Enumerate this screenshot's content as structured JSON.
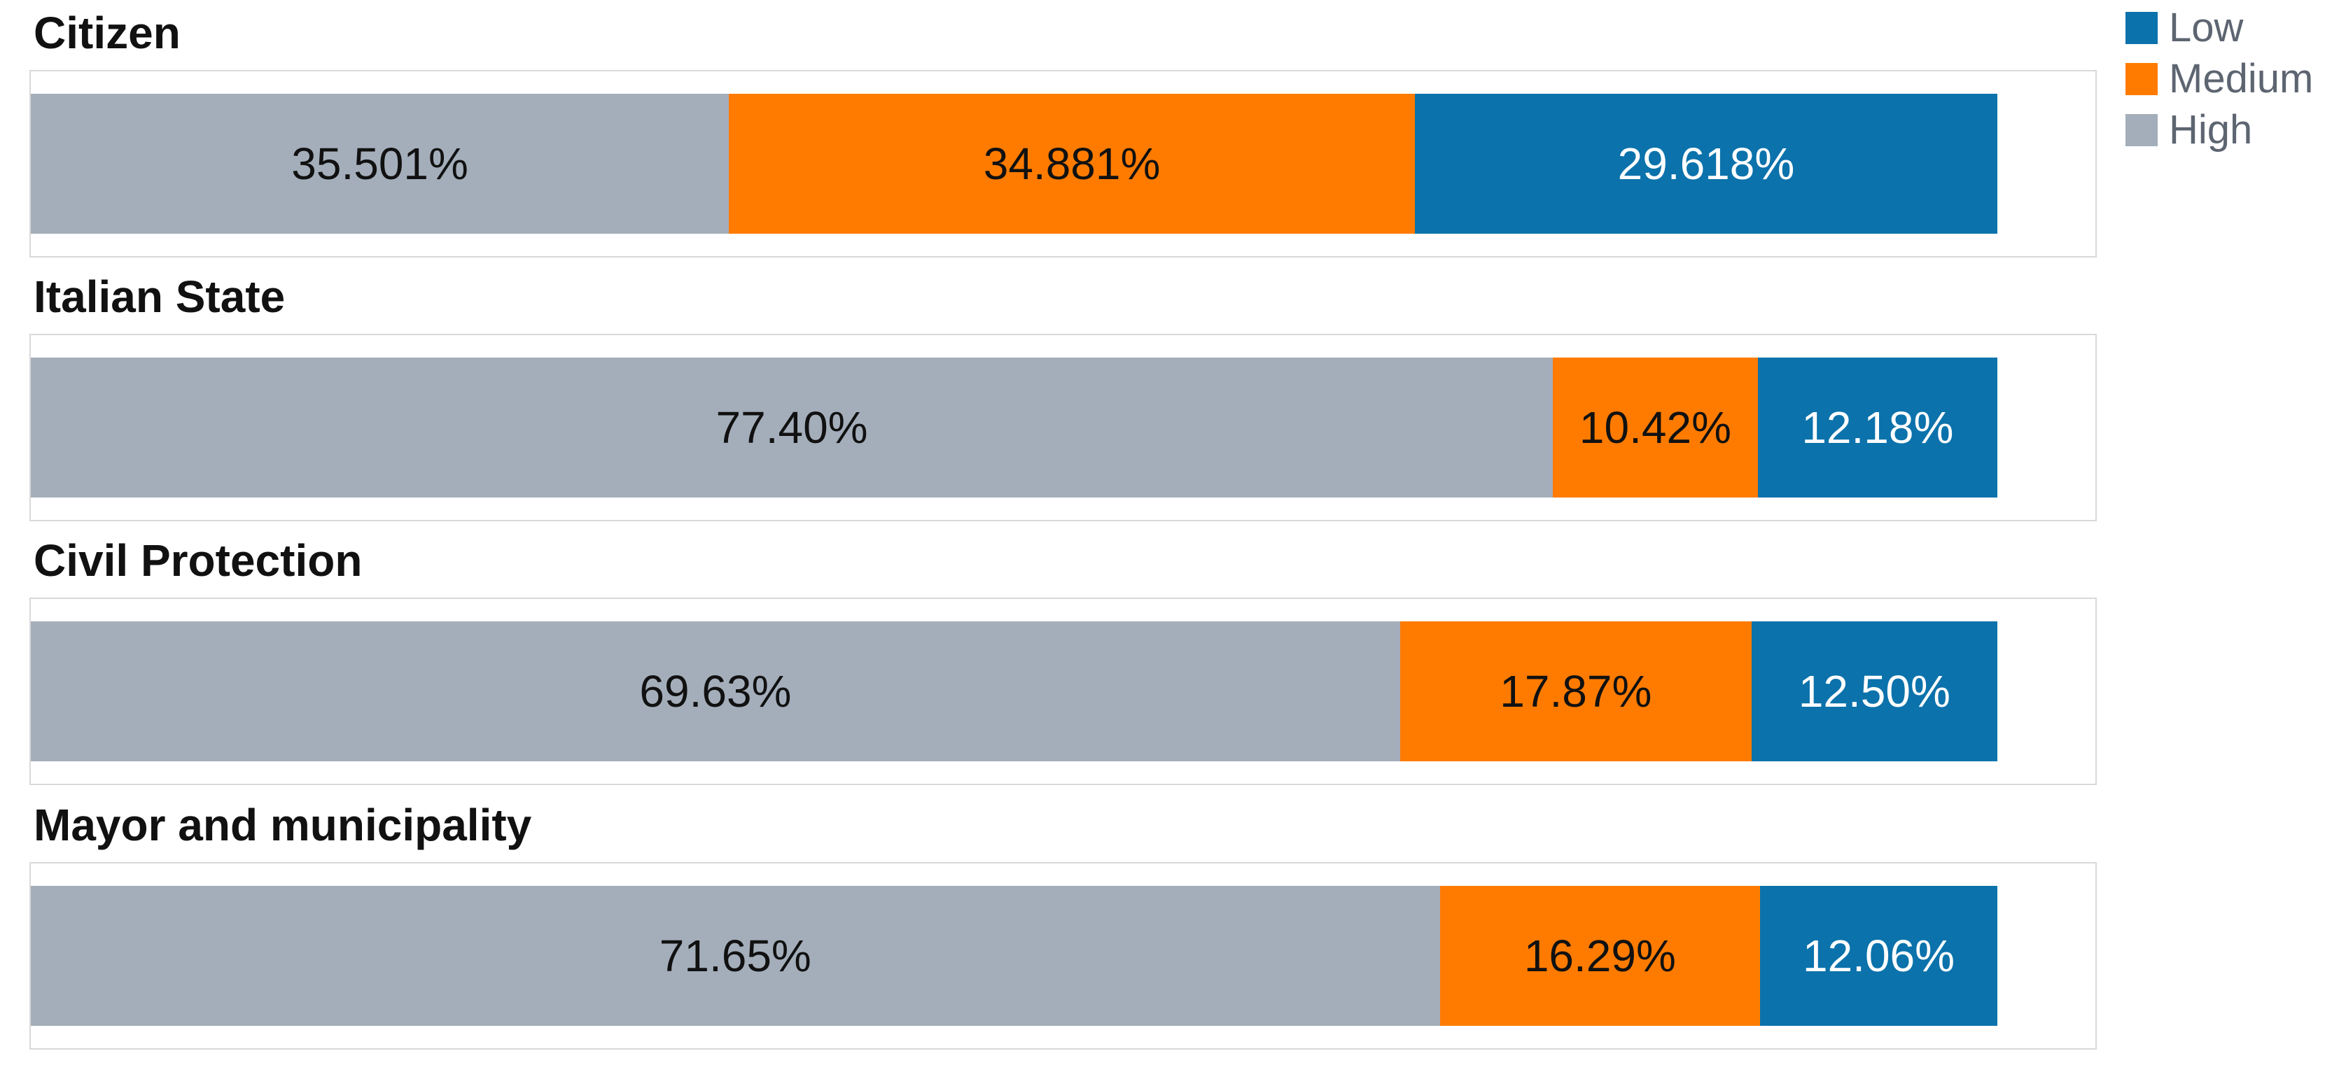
{
  "chart_data": {
    "type": "bar",
    "variant": "horizontal-stacked-percentage",
    "title": "",
    "xlabel": "",
    "ylabel": "",
    "xlim": [
      0,
      100
    ],
    "grid": false,
    "legend_position": "top-right",
    "categories": [
      "Citizen",
      "Italian State",
      "Civil Protection",
      "Mayor and municipality"
    ],
    "series": [
      {
        "name": "High",
        "color": "#a4aebb",
        "values": [
          35.501,
          77.4,
          69.63,
          71.65
        ]
      },
      {
        "name": "Medium",
        "color": "#ff7b00",
        "values": [
          34.881,
          10.42,
          17.87,
          16.29
        ]
      },
      {
        "name": "Low",
        "color": "#0b72ab",
        "values": [
          29.618,
          12.18,
          12.5,
          12.06
        ]
      }
    ],
    "rows": [
      {
        "category": "Citizen",
        "segments": [
          {
            "series": "High",
            "value": 35.501,
            "label": "35.501%",
            "color": "#a4aebb",
            "label_color": "#111111"
          },
          {
            "series": "Medium",
            "value": 34.881,
            "label": "34.881%",
            "color": "#ff7b00",
            "label_color": "#111111"
          },
          {
            "series": "Low",
            "value": 29.618,
            "label": "29.618%",
            "color": "#0b72ab",
            "label_color": "#ffffff"
          }
        ]
      },
      {
        "category": "Italian State",
        "segments": [
          {
            "series": "High",
            "value": 77.4,
            "label": "77.40%",
            "color": "#a4aebb",
            "label_color": "#111111"
          },
          {
            "series": "Medium",
            "value": 10.42,
            "label": "10.42%",
            "color": "#ff7b00",
            "label_color": "#111111"
          },
          {
            "series": "Low",
            "value": 12.18,
            "label": "12.18%",
            "color": "#0b72ab",
            "label_color": "#ffffff"
          }
        ]
      },
      {
        "category": "Civil Protection",
        "segments": [
          {
            "series": "High",
            "value": 69.63,
            "label": "69.63%",
            "color": "#a4aebb",
            "label_color": "#111111"
          },
          {
            "series": "Medium",
            "value": 17.87,
            "label": "17.87%",
            "color": "#ff7b00",
            "label_color": "#111111"
          },
          {
            "series": "Low",
            "value": 12.5,
            "label": "12.50%",
            "color": "#0b72ab",
            "label_color": "#ffffff"
          }
        ]
      },
      {
        "category": "Mayor and municipality",
        "segments": [
          {
            "series": "High",
            "value": 71.65,
            "label": "71.65%",
            "color": "#a4aebb",
            "label_color": "#111111"
          },
          {
            "series": "Medium",
            "value": 16.29,
            "label": "16.29%",
            "color": "#ff7b00",
            "label_color": "#111111"
          },
          {
            "series": "Low",
            "value": 12.06,
            "label": "12.06%",
            "color": "#0b72ab",
            "label_color": "#ffffff"
          }
        ]
      }
    ]
  },
  "legend": {
    "items": [
      {
        "label": "Low",
        "color": "#0b72ab"
      },
      {
        "label": "Medium",
        "color": "#ff7b00"
      },
      {
        "label": "High",
        "color": "#a4aebb"
      }
    ]
  },
  "colors": {
    "background": "#ffffff",
    "box_border": "#d9d9d9",
    "category_title": "#111111",
    "legend_text": "#5d6571"
  }
}
